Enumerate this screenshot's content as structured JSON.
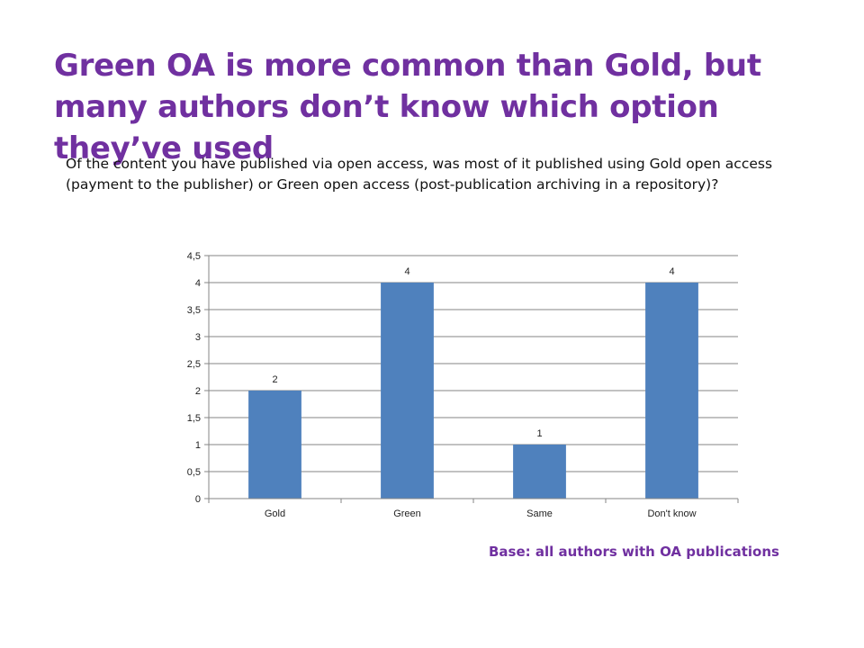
{
  "title": "Green OA is more common than Gold, but many authors don’t know which option they’ve used",
  "question": "Of the content you have published via open access, was most of it published using Gold open access (payment to the publisher) or Green open access (post-publication archiving in a repository)?",
  "base_note": "Base: all authors with OA publications",
  "colors": {
    "title": "#7030A0",
    "bar": "#4F81BD",
    "grid": "#868686"
  },
  "chart_data": {
    "type": "bar",
    "categories": [
      "Gold",
      "Green",
      "Same",
      "Don't know"
    ],
    "series": [
      {
        "values": [
          2,
          4,
          1,
          4
        ]
      }
    ],
    "data_labels": [
      "2",
      "4",
      "1",
      "4"
    ],
    "y_ticks": [
      "0",
      "0,5",
      "1",
      "1,5",
      "2",
      "2,5",
      "3",
      "3,5",
      "4",
      "4,5"
    ],
    "ylim": [
      0,
      4.5
    ],
    "grid": true,
    "legend": "none"
  }
}
